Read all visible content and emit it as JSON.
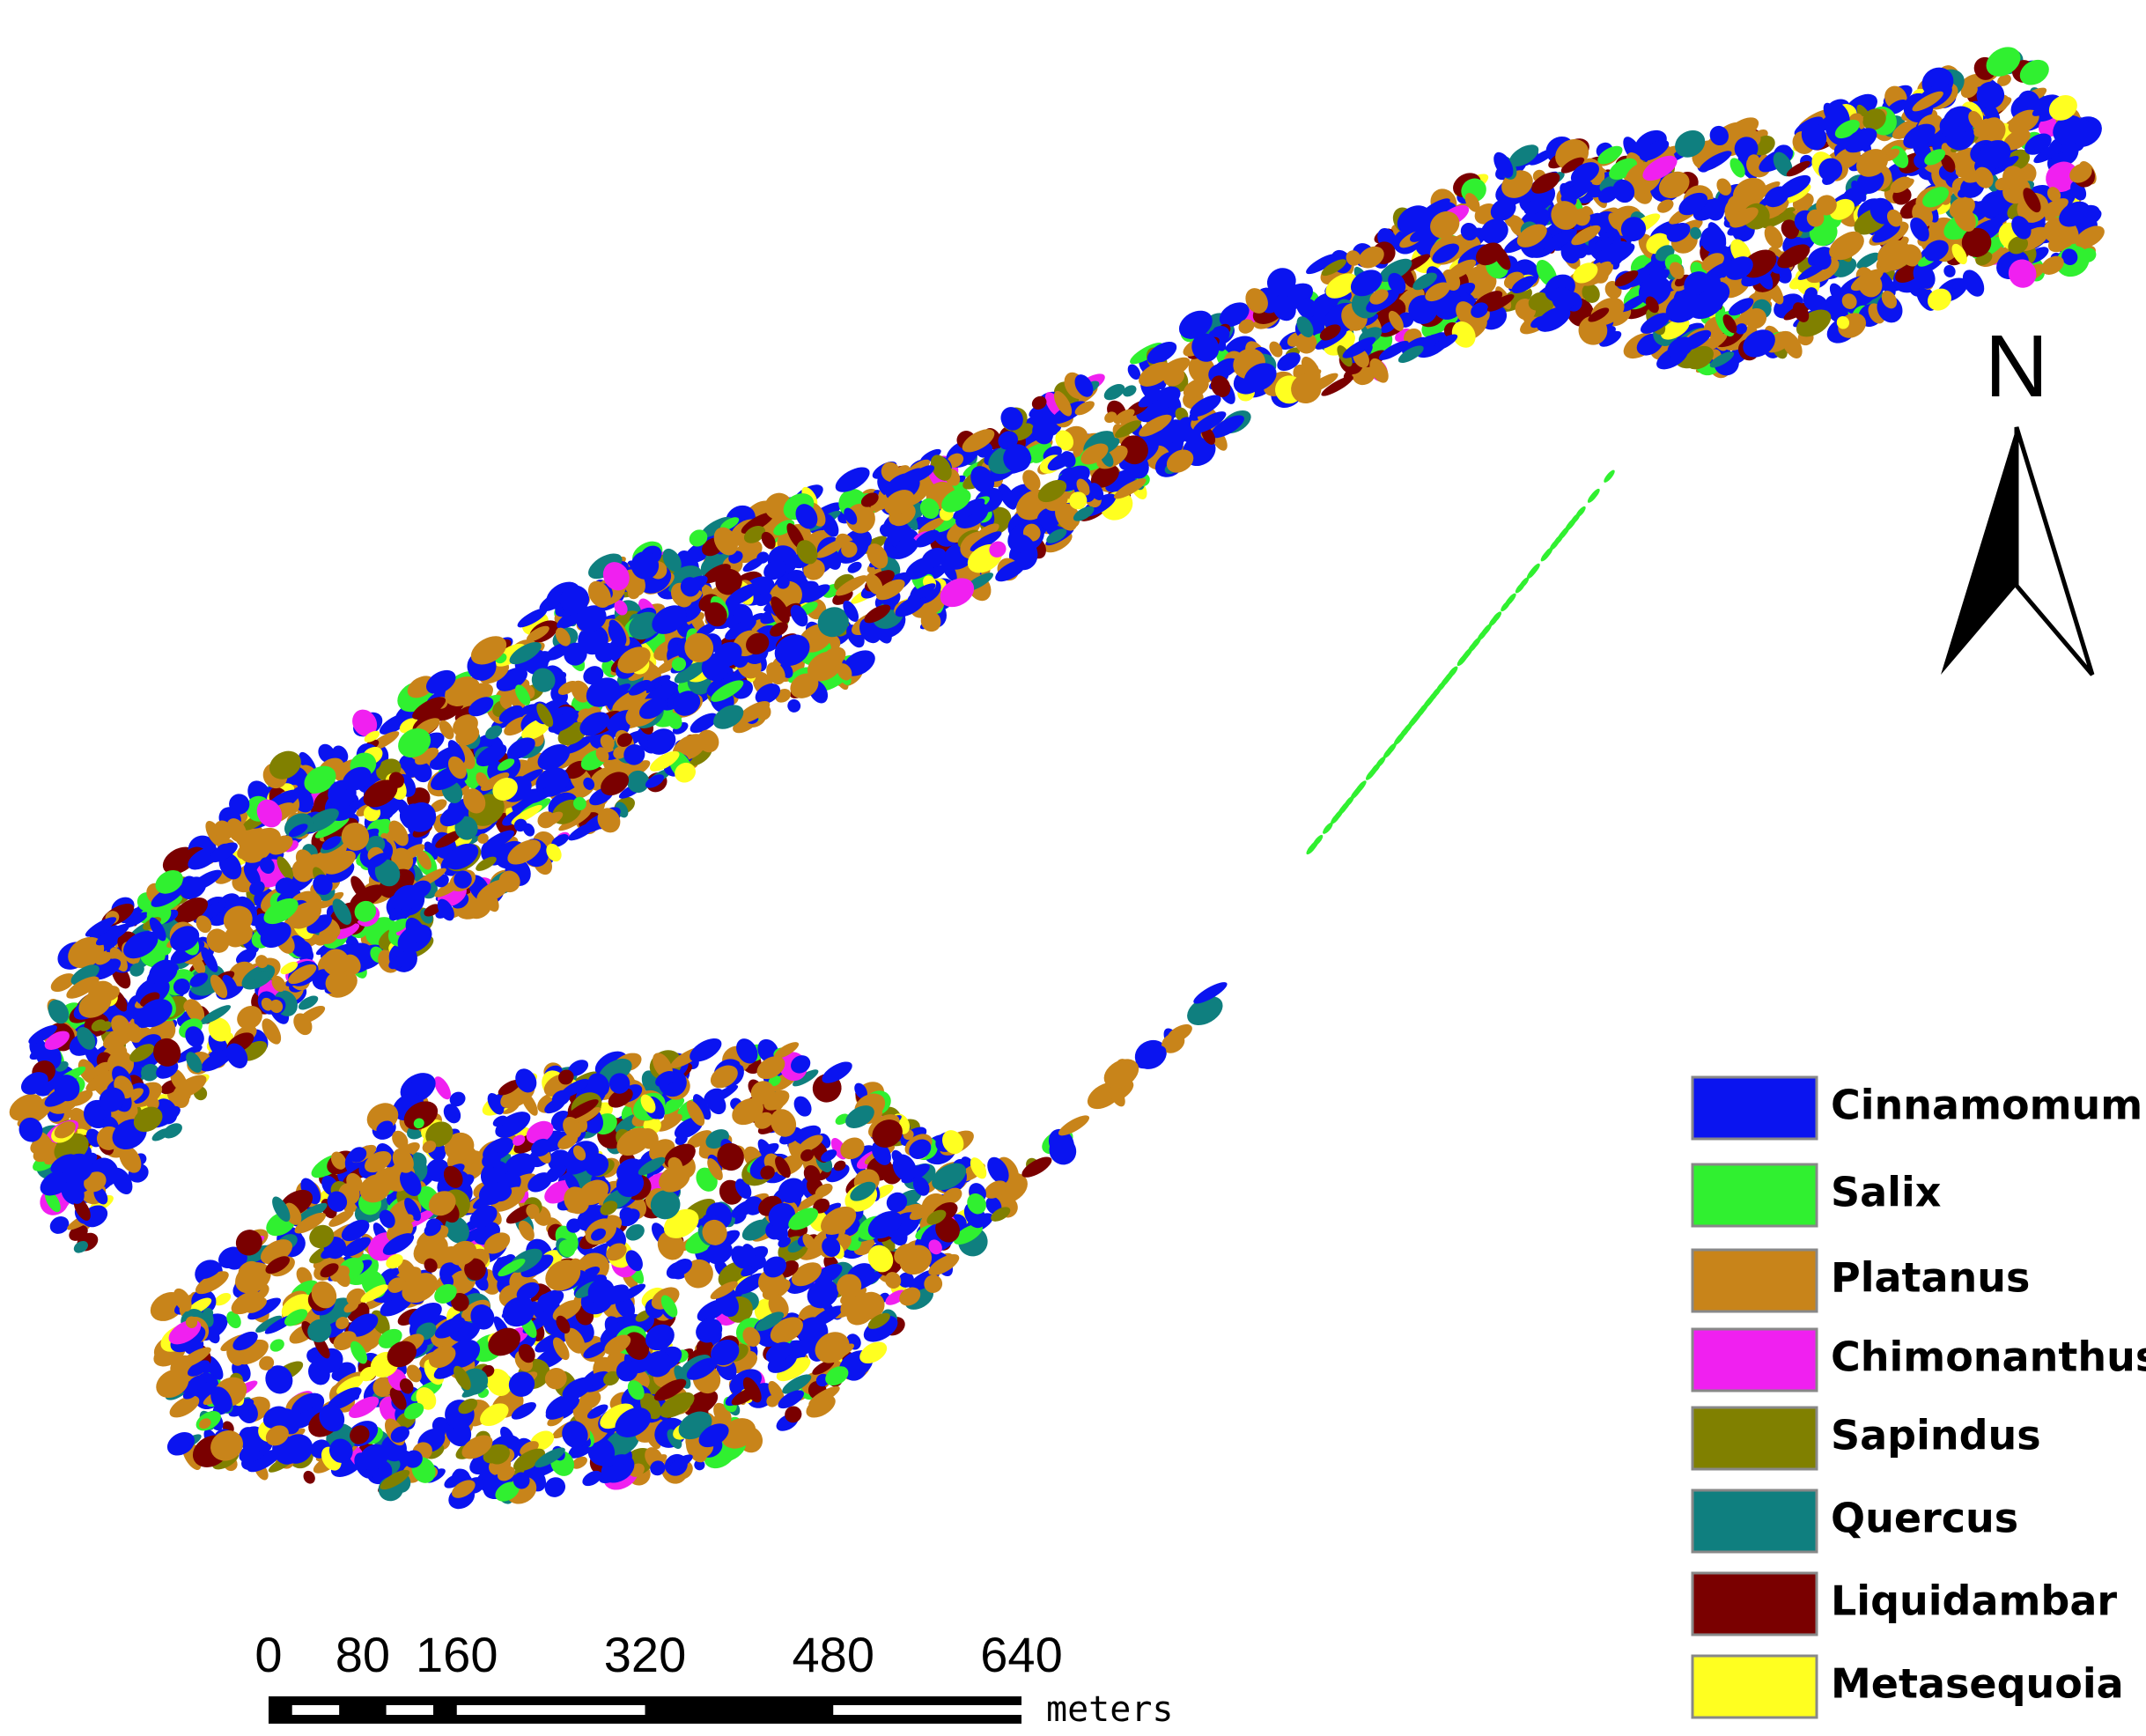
{
  "north_label": "N",
  "legend": [
    {
      "name": "Cinnamomum",
      "color": "#0a14f0"
    },
    {
      "name": "Salix",
      "color": "#30f030"
    },
    {
      "name": "Platanus",
      "color": "#c8841a"
    },
    {
      "name": "Chimonanthus",
      "color": "#f020f0"
    },
    {
      "name": "Sapindus",
      "color": "#808000"
    },
    {
      "name": "Quercus",
      "color": "#0f7f7f"
    },
    {
      "name": "Liquidambar",
      "color": "#7a0000"
    },
    {
      "name": "Metasequoia",
      "color": "#ffff20"
    }
  ],
  "scale_bar": {
    "ticks": [
      0,
      80,
      160,
      320,
      480,
      640
    ],
    "unit": "meters"
  }
}
